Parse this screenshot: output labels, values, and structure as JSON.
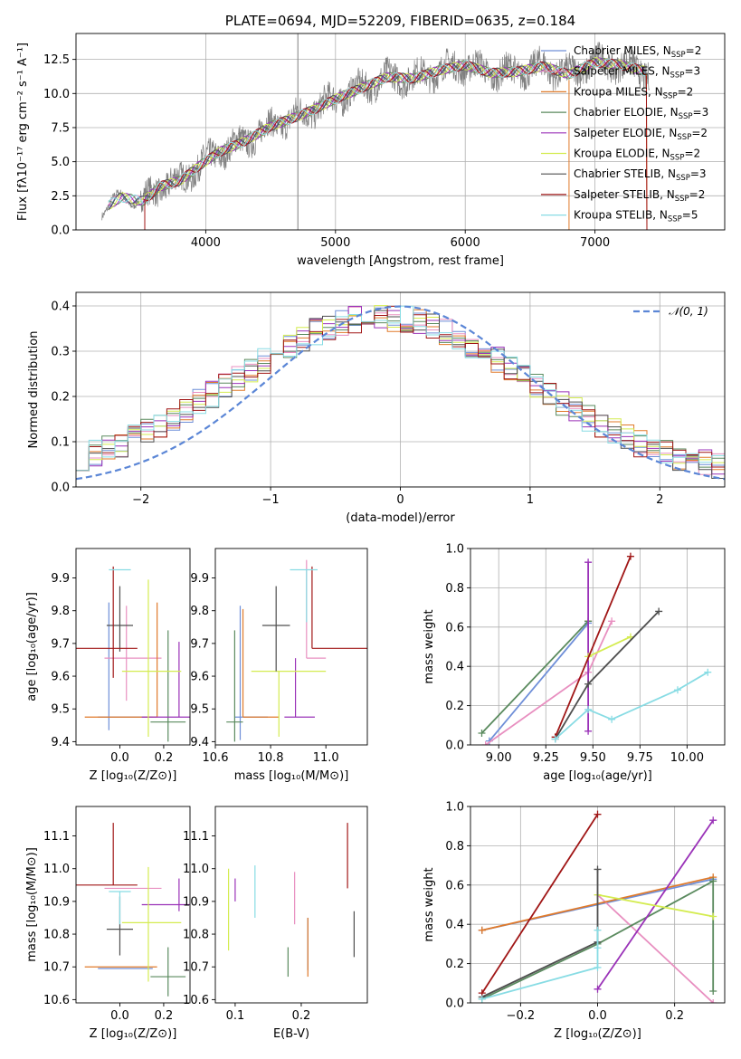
{
  "colors": {
    "Chabrier MILES": "#6f8fd8",
    "Salpeter MILES": "#e88fc0",
    "Kroupa MILES": "#e07a2a",
    "Chabrier ELODIE": "#5a8a5e",
    "Salpeter ELODIE": "#9a32b8",
    "Kroupa ELODIE": "#d4ec50",
    "Chabrier STELIB": "#4f4f4f",
    "Salpeter STELIB": "#a01616",
    "Kroupa STELIB": "#88dce4",
    "gaussian": "#5b86d6"
  },
  "chart_data": [
    {
      "id": "spectrum",
      "type": "line",
      "title": "PLATE=0694, MJD=52209, FIBERID=0635, z=0.184",
      "xlabel": "wavelength [Angstrom, rest frame]",
      "ylabel": "Flux [fλ10⁻¹⁷ erg cm⁻² s⁻¹ A⁻¹]",
      "xlim": [
        3000,
        8000
      ],
      "ylim": [
        0,
        14.4
      ],
      "xticks": [
        4000,
        5000,
        6000,
        7000
      ],
      "yticks": [
        0.0,
        2.5,
        5.0,
        7.5,
        10.0,
        12.5
      ],
      "grid": true,
      "legend_position": "top-right",
      "spectrum_anchors": {
        "wavelength": [
          3200,
          3350,
          3520,
          3650,
          3800,
          3950,
          4100,
          4300,
          4500,
          4700,
          4850,
          5000,
          5200,
          5400,
          5600,
          5800,
          6000,
          6200,
          6400,
          6600,
          6800,
          7000,
          7200,
          7400
        ],
        "flux": [
          1.5,
          2.4,
          2.1,
          3.2,
          3.6,
          4.7,
          5.7,
          6.5,
          7.6,
          8.3,
          8.9,
          9.6,
          10.4,
          11.2,
          11.1,
          11.7,
          12.1,
          11.5,
          11.6,
          12.0,
          11.4,
          12.3,
          12.1,
          11.6
        ]
      },
      "series": [
        {
          "name": "Chabrier MILES",
          "label_base": "Chabrier MILES, N",
          "sub": "SSP",
          "label_tail": "=2"
        },
        {
          "name": "Salpeter MILES",
          "label_base": "Salpeter MILES, N",
          "sub": "SSP",
          "label_tail": "=3"
        },
        {
          "name": "Kroupa MILES",
          "label_base": "Kroupa MILES, N",
          "sub": "SSP",
          "label_tail": "=2"
        },
        {
          "name": "Chabrier ELODIE",
          "label_base": "Chabrier ELODIE, N",
          "sub": "SSP",
          "label_tail": "=3"
        },
        {
          "name": "Salpeter ELODIE",
          "label_base": "Salpeter ELODIE, N",
          "sub": "SSP",
          "label_tail": "=2"
        },
        {
          "name": "Kroupa ELODIE",
          "label_base": "Kroupa ELODIE, N",
          "sub": "SSP",
          "label_tail": "=2"
        },
        {
          "name": "Chabrier STELIB",
          "label_base": "Chabrier STELIB, N",
          "sub": "SSP",
          "label_tail": "=3"
        },
        {
          "name": "Salpeter STELIB",
          "label_base": "Salpeter STELIB, N",
          "sub": "SSP",
          "label_tail": "=2"
        },
        {
          "name": "Kroupa STELIB",
          "label_base": "Kroupa STELIB, N",
          "sub": "SSP",
          "label_tail": "=5"
        }
      ]
    },
    {
      "id": "residuals",
      "type": "histogram",
      "xlabel": "(data-model)/error",
      "ylabel": "Normed distribution",
      "xlim": [
        -2.5,
        2.5
      ],
      "ylim": [
        0,
        0.43
      ],
      "xticks": [
        -2,
        -1,
        0,
        1,
        2
      ],
      "yticks": [
        0.0,
        0.1,
        0.2,
        0.3,
        0.4
      ],
      "grid": true,
      "legend_position": "top-right",
      "gaussian_label": "𝒩(0, 1)",
      "bin_width": 0.1
    },
    {
      "id": "age_vs_Z",
      "type": "scatter",
      "xlabel": "Z [log₁₀(Z/Z⊙)]",
      "ylabel": "age  [log₁₀(age/yr)]",
      "xlim": [
        -0.2,
        0.32
      ],
      "ylim": [
        9.39,
        9.99
      ],
      "xticks": [
        0.0,
        0.2
      ],
      "yticks": [
        9.4,
        9.5,
        9.6,
        9.7,
        9.8,
        9.9
      ],
      "points": [
        {
          "series": "Chabrier MILES",
          "x": -0.05,
          "y": 9.475,
          "xerr": [
            0.05,
            0.2
          ],
          "yerr": [
            0.04,
            0.35
          ]
        },
        {
          "series": "Salpeter MILES",
          "x": 0.03,
          "y": 9.655,
          "xerr": [
            0.1,
            0.16
          ],
          "yerr": [
            0.13,
            0.16
          ]
        },
        {
          "series": "Kroupa MILES",
          "x": 0.17,
          "y": 9.475,
          "xerr": [
            0.33,
            0.0
          ],
          "yerr": [
            0.0,
            0.35
          ]
        },
        {
          "series": "Chabrier ELODIE",
          "x": 0.22,
          "y": 9.46,
          "xerr": [
            0.08,
            0.08
          ],
          "yerr": [
            0.06,
            0.28
          ]
        },
        {
          "series": "Salpeter ELODIE",
          "x": 0.27,
          "y": 9.475,
          "xerr": [
            0.17,
            0.05
          ],
          "yerr": [
            0.0,
            0.23
          ]
        },
        {
          "series": "Kroupa ELODIE",
          "x": 0.13,
          "y": 9.615,
          "xerr": [
            0.12,
            0.15
          ],
          "yerr": [
            0.2,
            0.28
          ]
        },
        {
          "series": "Chabrier STELIB",
          "x": 0.0,
          "y": 9.755,
          "xerr": [
            0.06,
            0.06
          ],
          "yerr": [
            0.08,
            0.12
          ]
        },
        {
          "series": "Salpeter STELIB",
          "x": -0.03,
          "y": 9.685,
          "xerr": [
            0.18,
            0.11
          ],
          "yerr": [
            0.09,
            0.25
          ]
        },
        {
          "series": "Kroupa STELIB",
          "x": 0.0,
          "y": 9.925,
          "xerr": [
            0.05,
            0.05
          ],
          "yerr": [
            0.0,
            0.0
          ]
        }
      ]
    },
    {
      "id": "age_vs_mass",
      "type": "scatter",
      "xlabel": "mass [log₁₀(M/M⊙)]",
      "ylabel": "",
      "xlim": [
        10.6,
        11.15
      ],
      "ylim": [
        9.39,
        9.99
      ],
      "xticks": [
        10.6,
        10.8,
        11.0
      ],
      "yticks": [
        9.4,
        9.5,
        9.6,
        9.7,
        9.8,
        9.9
      ],
      "points": [
        {
          "series": "Chabrier MILES",
          "x": 10.69,
          "y": 9.475,
          "xerr": [
            0.02,
            0.1
          ],
          "yerr": [
            0.07,
            0.34
          ]
        },
        {
          "series": "Salpeter MILES",
          "x": 10.93,
          "y": 9.655,
          "xerr": [
            0.0,
            0.07
          ],
          "yerr": [
            0.0,
            0.3
          ]
        },
        {
          "series": "Kroupa MILES",
          "x": 10.7,
          "y": 9.475,
          "xerr": [
            0.0,
            0.13
          ],
          "yerr": [
            0.0,
            0.33
          ]
        },
        {
          "series": "Chabrier ELODIE",
          "x": 10.67,
          "y": 9.46,
          "xerr": [
            0.03,
            0.03
          ],
          "yerr": [
            0.06,
            0.28
          ]
        },
        {
          "series": "Salpeter ELODIE",
          "x": 10.89,
          "y": 9.475,
          "xerr": [
            0.04,
            0.07
          ],
          "yerr": [
            0.0,
            0.18
          ]
        },
        {
          "series": "Kroupa ELODIE",
          "x": 10.83,
          "y": 9.615,
          "xerr": [
            0.1,
            0.17
          ],
          "yerr": [
            0.2,
            0.0
          ]
        },
        {
          "series": "Chabrier STELIB",
          "x": 10.82,
          "y": 9.755,
          "xerr": [
            0.05,
            0.05
          ],
          "yerr": [
            0.14,
            0.12
          ]
        },
        {
          "series": "Salpeter STELIB",
          "x": 10.95,
          "y": 9.685,
          "xerr": [
            0.0,
            0.2
          ],
          "yerr": [
            0.0,
            0.25
          ]
        },
        {
          "series": "Kroupa STELIB",
          "x": 10.93,
          "y": 9.925,
          "xerr": [
            0.06,
            0.04
          ],
          "yerr": [
            0.16,
            0.0
          ]
        }
      ]
    },
    {
      "id": "weight_vs_age",
      "type": "line",
      "xlabel": "age  [log₁₀(age/yr)]",
      "ylabel": "mass weight",
      "xlim": [
        8.85,
        10.2
      ],
      "ylim": [
        0,
        1.0
      ],
      "xticks": [
        9.0,
        9.25,
        9.5,
        9.75,
        10.0
      ],
      "yticks": [
        0.0,
        0.2,
        0.4,
        0.6,
        0.8,
        1.0
      ],
      "grid": true,
      "series": [
        {
          "name": "Chabrier MILES",
          "x": [
            8.95,
            9.475
          ],
          "y": [
            0.02,
            0.62
          ]
        },
        {
          "name": "Salpeter MILES",
          "x": [
            8.93,
            9.475,
            9.6
          ],
          "y": [
            0.0,
            0.37,
            0.63
          ]
        },
        {
          "name": "Kroupa MILES",
          "x": [
            9.475
          ],
          "y": [
            0.63
          ]
        },
        {
          "name": "Chabrier ELODIE",
          "x": [
            8.91,
            9.475
          ],
          "y": [
            0.06,
            0.63
          ]
        },
        {
          "name": "Salpeter ELODIE",
          "x": [
            9.475,
            9.475
          ],
          "y": [
            0.07,
            0.93
          ]
        },
        {
          "name": "Kroupa ELODIE",
          "x": [
            9.475,
            9.7
          ],
          "y": [
            0.45,
            0.55
          ]
        },
        {
          "name": "Chabrier STELIB",
          "x": [
            9.3,
            9.475,
            9.85
          ],
          "y": [
            0.03,
            0.31,
            0.68
          ]
        },
        {
          "name": "Salpeter STELIB",
          "x": [
            9.3,
            9.7
          ],
          "y": [
            0.04,
            0.96
          ]
        },
        {
          "name": "Kroupa STELIB",
          "x": [
            9.3,
            9.475,
            9.6,
            9.95,
            10.11
          ],
          "y": [
            0.03,
            0.18,
            0.13,
            0.28,
            0.37
          ]
        }
      ]
    },
    {
      "id": "mass_vs_Z",
      "type": "scatter",
      "xlabel": "Z [log₁₀(Z/Z⊙)]",
      "ylabel": "mass [log₁₀(M/M⊙)]",
      "xlim": [
        -0.2,
        0.32
      ],
      "ylim": [
        10.59,
        11.19
      ],
      "xticks": [
        0.0,
        0.2
      ],
      "yticks": [
        10.6,
        10.7,
        10.8,
        10.9,
        11.0,
        11.1
      ],
      "points": [
        {
          "series": "Chabrier MILES",
          "x": -0.05,
          "y": 10.695,
          "xerr": [
            0.05,
            0.2
          ],
          "yerr": [
            0.0,
            0.0
          ]
        },
        {
          "series": "Salpeter MILES",
          "x": 0.03,
          "y": 10.94,
          "xerr": [
            0.1,
            0.16
          ],
          "yerr": [
            0.0,
            0.0
          ]
        },
        {
          "series": "Kroupa MILES",
          "x": 0.17,
          "y": 10.7,
          "xerr": [
            0.33,
            0.0
          ],
          "yerr": [
            0.0,
            0.0
          ]
        },
        {
          "series": "Chabrier ELODIE",
          "x": 0.22,
          "y": 10.67,
          "xerr": [
            0.08,
            0.08
          ],
          "yerr": [
            0.06,
            0.09
          ]
        },
        {
          "series": "Salpeter ELODIE",
          "x": 0.27,
          "y": 10.89,
          "xerr": [
            0.17,
            0.05
          ],
          "yerr": [
            0.02,
            0.08
          ]
        },
        {
          "series": "Kroupa ELODIE",
          "x": 0.13,
          "y": 10.835,
          "xerr": [
            0.12,
            0.15
          ],
          "yerr": [
            0.18,
            0.17
          ]
        },
        {
          "series": "Chabrier STELIB",
          "x": 0.0,
          "y": 10.815,
          "xerr": [
            0.06,
            0.06
          ],
          "yerr": [
            0.08,
            0.1
          ]
        },
        {
          "series": "Salpeter STELIB",
          "x": -0.03,
          "y": 10.95,
          "xerr": [
            0.18,
            0.11
          ],
          "yerr": [
            0.0,
            0.19
          ]
        },
        {
          "series": "Kroupa STELIB",
          "x": 0.0,
          "y": 10.93,
          "xerr": [
            0.05,
            0.05
          ],
          "yerr": [
            0.1,
            0.0
          ]
        }
      ]
    },
    {
      "id": "mass_vs_EBV",
      "type": "scatter",
      "xlabel": "E(B-V)",
      "ylabel": "",
      "xlim": [
        0.07,
        0.3
      ],
      "ylim": [
        10.59,
        11.19
      ],
      "xticks": [
        0.1,
        0.2
      ],
      "yticks": [
        10.6,
        10.7,
        10.8,
        10.9,
        11.0,
        11.1
      ],
      "points": [
        {
          "series": "Chabrier MILES",
          "x": 0.21,
          "y": 10.79,
          "xerr": [
            0.0,
            0.0
          ],
          "yerr": [
            0.1,
            0.06
          ]
        },
        {
          "series": "Salpeter MILES",
          "x": 0.19,
          "y": 10.91,
          "xerr": [
            0.0,
            0.0
          ],
          "yerr": [
            0.08,
            0.08
          ]
        },
        {
          "series": "Kroupa MILES",
          "x": 0.21,
          "y": 10.76,
          "xerr": [
            0.0,
            0.0
          ],
          "yerr": [
            0.09,
            0.09
          ]
        },
        {
          "series": "Chabrier ELODIE",
          "x": 0.18,
          "y": 10.7,
          "xerr": [
            0.0,
            0.0
          ],
          "yerr": [
            0.03,
            0.06
          ]
        },
        {
          "series": "Salpeter ELODIE",
          "x": 0.1,
          "y": 10.93,
          "xerr": [
            0.0,
            0.0
          ],
          "yerr": [
            0.03,
            0.04
          ]
        },
        {
          "series": "Kroupa ELODIE",
          "x": 0.09,
          "y": 10.87,
          "xerr": [
            0.0,
            0.0
          ],
          "yerr": [
            0.12,
            0.13
          ]
        },
        {
          "series": "Chabrier STELIB",
          "x": 0.28,
          "y": 10.8,
          "xerr": [
            0.0,
            0.0
          ],
          "yerr": [
            0.07,
            0.07
          ]
        },
        {
          "series": "Salpeter STELIB",
          "x": 0.27,
          "y": 11.04,
          "xerr": [
            0.0,
            0.0
          ],
          "yerr": [
            0.1,
            0.1
          ]
        },
        {
          "series": "Kroupa STELIB",
          "x": 0.13,
          "y": 10.93,
          "xerr": [
            0.0,
            0.0
          ],
          "yerr": [
            0.08,
            0.08
          ]
        }
      ]
    },
    {
      "id": "weight_vs_Z",
      "type": "line",
      "xlabel": "Z [log₁₀(Z/Z⊙)]",
      "ylabel": "mass weight",
      "xlim": [
        -0.33,
        0.33
      ],
      "ylim": [
        0,
        1.0
      ],
      "xticks": [
        -0.2,
        0.0,
        0.2
      ],
      "yticks": [
        0.0,
        0.2,
        0.4,
        0.6,
        0.8,
        1.0
      ],
      "grid": true,
      "series": [
        {
          "name": "Chabrier MILES",
          "x": [
            -0.3,
            0.3
          ],
          "y": [
            0.37,
            0.63
          ]
        },
        {
          "name": "Salpeter MILES",
          "x": [
            0.0,
            0.3
          ],
          "y": [
            0.55,
            0.0
          ]
        },
        {
          "name": "Kroupa MILES",
          "x": [
            -0.3,
            0.3
          ],
          "y": [
            0.37,
            0.64
          ]
        },
        {
          "name": "Chabrier ELODIE",
          "x": [
            -0.3,
            0.0,
            0.3,
            0.3
          ],
          "y": [
            0.02,
            0.3,
            0.62,
            0.06
          ]
        },
        {
          "name": "Salpeter ELODIE",
          "x": [
            0.0,
            0.3
          ],
          "y": [
            0.07,
            0.93
          ]
        },
        {
          "name": "Kroupa ELODIE",
          "x": [
            0.0,
            0.3
          ],
          "y": [
            0.55,
            0.44
          ]
        },
        {
          "name": "Chabrier STELIB",
          "x": [
            -0.3,
            0.0,
            0.0
          ],
          "y": [
            0.03,
            0.31,
            0.68
          ]
        },
        {
          "name": "Salpeter STELIB",
          "x": [
            -0.3,
            0.0
          ],
          "y": [
            0.05,
            0.96
          ]
        },
        {
          "name": "Kroupa STELIB",
          "x": [
            -0.3,
            0.0,
            0.0,
            0.0
          ],
          "y": [
            0.02,
            0.18,
            0.28,
            0.37
          ]
        }
      ]
    }
  ]
}
